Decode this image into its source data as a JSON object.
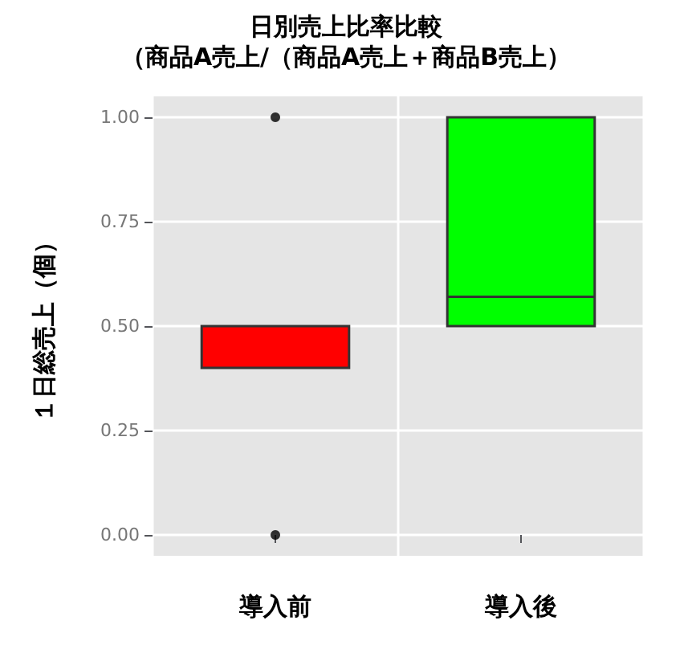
{
  "chart_data": {
    "type": "box",
    "title": "日別売上比率比較",
    "subtitle": "（商品A売上/（商品A売上＋商品B売上）",
    "ylabel": "１日総売上（個）",
    "categories": [
      "導入前",
      "導入後"
    ],
    "colors": [
      "#ff0000",
      "#00ff00"
    ],
    "boxes": [
      {
        "low": 0.4,
        "q1": 0.4,
        "median": 0.5,
        "q3": 0.5,
        "high": 0.5,
        "outliers": [
          0,
          1
        ]
      },
      {
        "low": 0.5,
        "q1": 0.5,
        "median": 0.57,
        "q3": 1,
        "high": 1
      }
    ],
    "ylim": [
      -0.05,
      1.05
    ],
    "yticks": [
      {
        "value": 0,
        "label": "0.00"
      },
      {
        "value": 0.25,
        "label": "0.25"
      },
      {
        "value": 0.5,
        "label": "0.50"
      },
      {
        "value": 0.75,
        "label": "0.75"
      },
      {
        "value": 1,
        "label": "1.00"
      }
    ],
    "grid": true
  }
}
